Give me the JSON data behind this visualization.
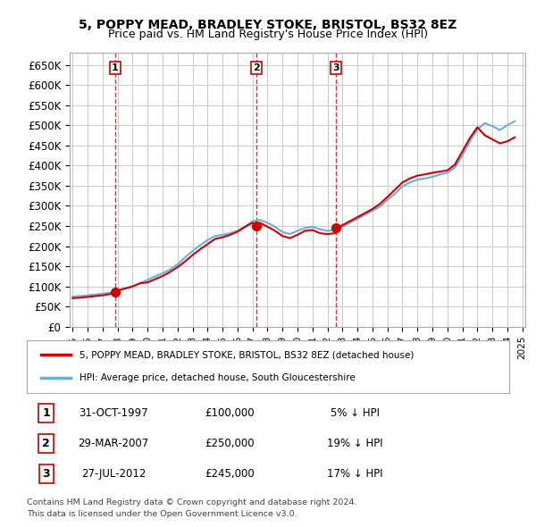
{
  "title": "5, POPPY MEAD, BRADLEY STOKE, BRISTOL, BS32 8EZ",
  "subtitle": "Price paid vs. HM Land Registry's House Price Index (HPI)",
  "legend_line1": "5, POPPY MEAD, BRADLEY STOKE, BRISTOL, BS32 8EZ (detached house)",
  "legend_line2": "HPI: Average price, detached house, South Gloucestershire",
  "transactions": [
    {
      "label": "1",
      "date_str": "31-OCT-1997",
      "price": 100000,
      "pct": "5%",
      "direction": "↓",
      "x": 1997.83
    },
    {
      "label": "2",
      "date_str": "29-MAR-2007",
      "price": 250000,
      "pct": "19%",
      "direction": "↓",
      "x": 2007.24
    },
    {
      "label": "3",
      "date_str": "27-JUL-2012",
      "price": 245000,
      "pct": "17%",
      "direction": "↓",
      "x": 2012.57
    }
  ],
  "footer_line1": "Contains HM Land Registry data © Crown copyright and database right 2024.",
  "footer_line2": "This data is licensed under the Open Government Licence v3.0.",
  "hpi_color": "#6baed6",
  "price_color": "#cc0000",
  "transaction_color": "#cc0000",
  "dashed_color": "#cc0000",
  "background_color": "#ffffff",
  "grid_color": "#cccccc",
  "ylim": [
    0,
    680000
  ],
  "yticks": [
    0,
    50000,
    100000,
    150000,
    200000,
    250000,
    300000,
    350000,
    400000,
    450000,
    500000,
    550000,
    600000,
    650000
  ],
  "hpi_data_x": [
    1995,
    1995.5,
    1996,
    1996.5,
    1997,
    1997.5,
    1998,
    1998.5,
    1999,
    1999.5,
    2000,
    2000.5,
    2001,
    2001.5,
    2002,
    2002.5,
    2003,
    2003.5,
    2004,
    2004.5,
    2005,
    2005.5,
    2006,
    2006.5,
    2007,
    2007.5,
    2008,
    2008.5,
    2009,
    2009.5,
    2010,
    2010.5,
    2011,
    2011.5,
    2012,
    2012.5,
    2013,
    2013.5,
    2014,
    2014.5,
    2015,
    2015.5,
    2016,
    2016.5,
    2017,
    2017.5,
    2018,
    2018.5,
    2019,
    2019.5,
    2020,
    2020.5,
    2021,
    2021.5,
    2022,
    2022.5,
    2023,
    2023.5,
    2024,
    2024.5
  ],
  "hpi_data_y": [
    75000,
    76000,
    78000,
    80000,
    82000,
    85000,
    90000,
    95000,
    100000,
    108000,
    116000,
    125000,
    133000,
    142000,
    155000,
    172000,
    188000,
    202000,
    215000,
    225000,
    228000,
    232000,
    238000,
    248000,
    262000,
    265000,
    258000,
    248000,
    235000,
    230000,
    238000,
    245000,
    248000,
    242000,
    238000,
    240000,
    248000,
    258000,
    268000,
    278000,
    288000,
    298000,
    315000,
    330000,
    348000,
    358000,
    365000,
    368000,
    372000,
    378000,
    382000,
    395000,
    425000,
    460000,
    490000,
    505000,
    498000,
    488000,
    500000,
    510000
  ],
  "price_data_x": [
    1995,
    1995.5,
    1996,
    1996.5,
    1997,
    1997.5,
    1997.83,
    1998,
    1998.5,
    1999,
    1999.5,
    2000,
    2000.5,
    2001,
    2001.5,
    2002,
    2002.5,
    2003,
    2003.5,
    2004,
    2004.5,
    2005,
    2005.5,
    2006,
    2006.5,
    2007,
    2007.24,
    2007.5,
    2008,
    2008.5,
    2009,
    2009.5,
    2010,
    2010.5,
    2011,
    2011.5,
    2012,
    2012.5,
    2012.57,
    2013,
    2013.5,
    2014,
    2014.5,
    2015,
    2015.5,
    2016,
    2016.5,
    2017,
    2017.5,
    2018,
    2018.5,
    2019,
    2019.5,
    2020,
    2020.5,
    2021,
    2021.5,
    2022,
    2022.5,
    2023,
    2023.5,
    2024,
    2024.5
  ],
  "price_data_y": [
    71000,
    72000,
    74000,
    76000,
    78000,
    81000,
    85000,
    90000,
    95000,
    100000,
    108000,
    110000,
    118000,
    126000,
    136000,
    148000,
    162000,
    178000,
    192000,
    205000,
    218000,
    222000,
    228000,
    236000,
    248000,
    258000,
    250000,
    258000,
    248000,
    238000,
    225000,
    220000,
    228000,
    238000,
    240000,
    232000,
    230000,
    232000,
    245000,
    252000,
    262000,
    272000,
    282000,
    292000,
    305000,
    322000,
    340000,
    358000,
    368000,
    375000,
    378000,
    382000,
    385000,
    388000,
    402000,
    435000,
    468000,
    495000,
    475000,
    465000,
    455000,
    460000,
    470000
  ]
}
